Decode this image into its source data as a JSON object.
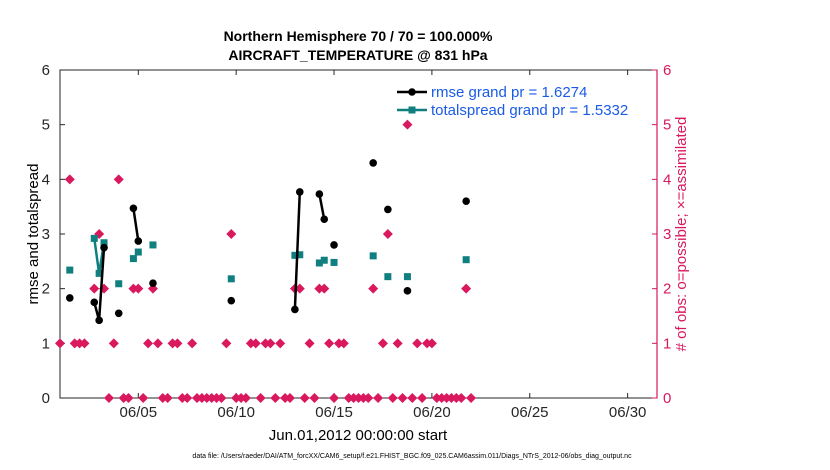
{
  "chart_data": {
    "type": "line",
    "title": [
      "Northern Hemisphere 70 / 70 = 100.000%",
      "AIRCRAFT_TEMPERATURE @ 831 hPa"
    ],
    "xlabel": "Jun.01,2012 00:00:00 start",
    "ylabel_left": "rmse and totalspread",
    "ylabel_right": "# of obs: o=possible; ×=assimilated",
    "xlim": [
      1,
      31.5
    ],
    "ylim_left": [
      0,
      6
    ],
    "ylim_right": [
      0,
      6
    ],
    "x_ticks": [
      5,
      10,
      15,
      20,
      25,
      30
    ],
    "x_tick_labels": [
      "06/05",
      "06/10",
      "06/15",
      "06/20",
      "06/25",
      "06/30"
    ],
    "y_ticks_left": [
      0,
      1,
      2,
      3,
      4,
      5,
      6
    ],
    "y_ticks_right": [
      0,
      1,
      2,
      3,
      4,
      5,
      6
    ],
    "colors": {
      "rmse": "#000000",
      "spread": "#0f7f7f",
      "obs": "#d9185e",
      "legend_text": "#1a5be6"
    },
    "legend": {
      "placement": "top-right"
    },
    "series": [
      {
        "name": "rmse grand pr = 1.6274",
        "points": [
          [
            1.5,
            1.83
          ],
          [
            2.75,
            1.75
          ],
          [
            3.0,
            1.42
          ],
          [
            3.25,
            2.75
          ],
          [
            4.0,
            1.55
          ],
          [
            4.75,
            3.47
          ],
          [
            5.0,
            2.87
          ],
          [
            5.75,
            2.1
          ],
          [
            9.75,
            1.78
          ],
          [
            13.0,
            1.62
          ],
          [
            13.25,
            3.77
          ],
          [
            14.25,
            3.73
          ],
          [
            14.5,
            3.27
          ],
          [
            15.0,
            2.8
          ],
          [
            17.0,
            4.3
          ],
          [
            17.75,
            3.45
          ],
          [
            18.75,
            1.96
          ],
          [
            21.75,
            3.6
          ]
        ],
        "segments": [
          [
            [
              2.75,
              1.75
            ],
            [
              3.0,
              1.42
            ],
            [
              3.25,
              2.75
            ]
          ],
          [
            [
              4.75,
              3.47
            ],
            [
              5.0,
              2.87
            ]
          ],
          [
            [
              13.0,
              1.62
            ],
            [
              13.25,
              3.77
            ]
          ],
          [
            [
              14.25,
              3.73
            ],
            [
              14.5,
              3.27
            ]
          ]
        ]
      },
      {
        "name": "totalspread grand pr = 1.5332",
        "points": [
          [
            1.5,
            2.34
          ],
          [
            2.75,
            2.92
          ],
          [
            3.0,
            2.28
          ],
          [
            3.25,
            2.84
          ],
          [
            4.0,
            2.09
          ],
          [
            4.75,
            2.55
          ],
          [
            5.0,
            2.67
          ],
          [
            5.75,
            2.8
          ],
          [
            9.75,
            2.18
          ],
          [
            13.0,
            2.61
          ],
          [
            13.25,
            2.62
          ],
          [
            14.25,
            2.47
          ],
          [
            14.5,
            2.52
          ],
          [
            15.0,
            2.48
          ],
          [
            17.0,
            2.6
          ],
          [
            17.75,
            2.22
          ],
          [
            18.75,
            2.22
          ],
          [
            21.75,
            2.53
          ]
        ],
        "segments": [
          [
            [
              2.75,
              2.92
            ],
            [
              3.0,
              2.28
            ],
            [
              3.25,
              2.84
            ]
          ],
          [
            [
              13.0,
              2.61
            ],
            [
              13.25,
              2.62
            ]
          ],
          [
            [
              14.25,
              2.47
            ],
            [
              14.5,
              2.52
            ]
          ]
        ]
      }
    ],
    "obs_possible": [
      [
        1.0,
        1
      ],
      [
        1.5,
        4
      ],
      [
        1.75,
        1
      ],
      [
        2.0,
        1
      ],
      [
        2.25,
        1
      ],
      [
        2.75,
        2
      ],
      [
        3.0,
        3
      ],
      [
        3.25,
        2
      ],
      [
        3.5,
        0
      ],
      [
        3.75,
        1
      ],
      [
        4.0,
        4
      ],
      [
        4.25,
        0
      ],
      [
        4.5,
        0
      ],
      [
        4.75,
        2
      ],
      [
        5.0,
        2
      ],
      [
        5.25,
        0
      ],
      [
        5.5,
        1
      ],
      [
        5.75,
        2
      ],
      [
        6.0,
        1
      ],
      [
        6.25,
        0
      ],
      [
        6.5,
        0
      ],
      [
        6.75,
        1
      ],
      [
        7.0,
        1
      ],
      [
        7.25,
        0
      ],
      [
        7.5,
        0
      ],
      [
        7.75,
        1
      ],
      [
        8.0,
        0
      ],
      [
        8.25,
        0
      ],
      [
        8.5,
        0
      ],
      [
        8.75,
        0
      ],
      [
        9.0,
        0
      ],
      [
        9.25,
        0
      ],
      [
        9.5,
        1
      ],
      [
        9.75,
        3
      ],
      [
        10.0,
        0
      ],
      [
        10.25,
        0
      ],
      [
        10.5,
        0
      ],
      [
        10.75,
        1
      ],
      [
        11.0,
        1
      ],
      [
        11.25,
        0
      ],
      [
        11.5,
        1
      ],
      [
        11.75,
        1
      ],
      [
        12.0,
        0
      ],
      [
        12.25,
        1
      ],
      [
        12.5,
        0
      ],
      [
        12.75,
        0
      ],
      [
        13.0,
        2
      ],
      [
        13.25,
        2
      ],
      [
        13.5,
        0
      ],
      [
        13.75,
        1
      ],
      [
        14.0,
        0
      ],
      [
        14.25,
        2
      ],
      [
        14.5,
        2
      ],
      [
        14.75,
        1
      ],
      [
        15.0,
        0
      ],
      [
        15.25,
        1
      ],
      [
        15.5,
        1
      ],
      [
        15.75,
        0
      ],
      [
        16.0,
        0
      ],
      [
        16.25,
        0
      ],
      [
        16.5,
        0
      ],
      [
        16.75,
        0
      ],
      [
        17.0,
        2
      ],
      [
        17.25,
        0
      ],
      [
        17.5,
        1
      ],
      [
        17.75,
        3
      ],
      [
        18.0,
        0
      ],
      [
        18.25,
        1
      ],
      [
        18.5,
        0
      ],
      [
        18.75,
        5
      ],
      [
        19.0,
        0
      ],
      [
        19.25,
        1
      ],
      [
        19.5,
        0
      ],
      [
        19.75,
        1
      ],
      [
        20.0,
        1
      ],
      [
        20.25,
        0
      ],
      [
        20.5,
        0
      ],
      [
        20.75,
        0
      ],
      [
        21.0,
        0
      ],
      [
        21.25,
        0
      ],
      [
        21.5,
        0
      ],
      [
        21.75,
        2
      ],
      [
        22.0,
        0
      ]
    ]
  },
  "footer": "data file: /Users/raeder/DAI/ATM_forcXX/CAM6_setup/f.e21.FHIST_BGC.f09_025.CAM6assim.011/Diags_NTrS_2012-06/obs_diag_output.nc"
}
